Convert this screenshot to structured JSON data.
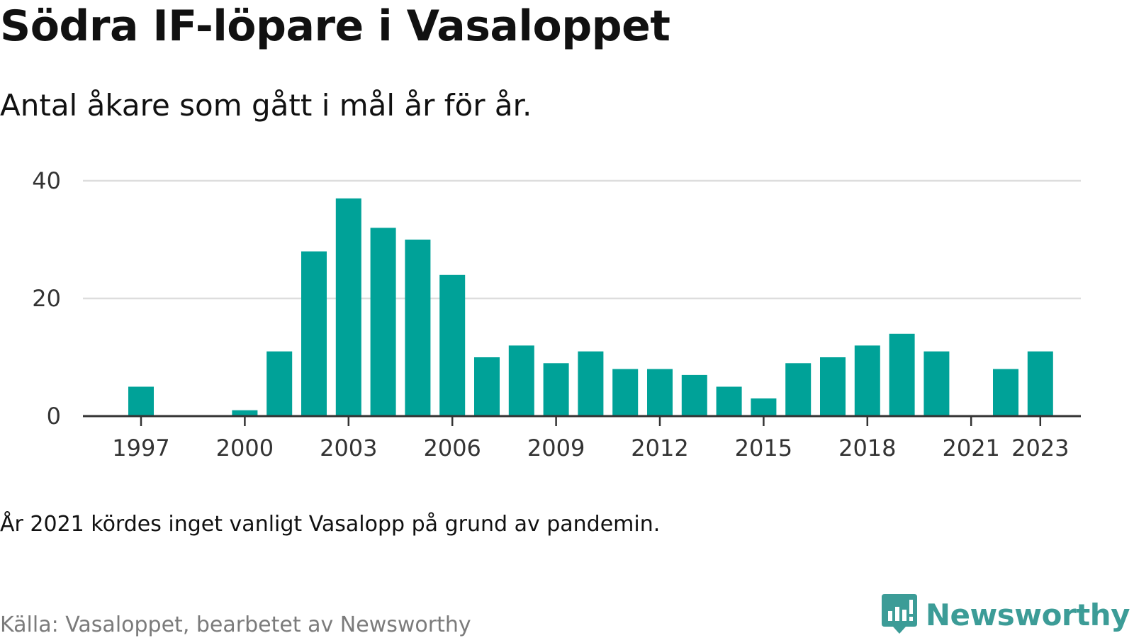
{
  "title": "Södra IF-löpare i Vasaloppet",
  "subtitle": "Antal åkare som gått i mål år för år.",
  "note": "År 2021 kördes inget vanligt Vasalopp på grund av pandemin.",
  "source": "Källa: Vasaloppet, bearbetet av Newsworthy",
  "logo": {
    "text": "Newsworthy",
    "icon": "chart-speech-bubble-icon",
    "color": "#3c9c97"
  },
  "chart_data": {
    "type": "bar",
    "title": "Södra IF-löpare i Vasaloppet",
    "subtitle": "Antal åkare som gått i mål år för år.",
    "xlabel": "",
    "ylabel": "",
    "categories": [
      1997,
      1998,
      1999,
      2000,
      2001,
      2002,
      2003,
      2004,
      2005,
      2006,
      2007,
      2008,
      2009,
      2010,
      2011,
      2012,
      2013,
      2014,
      2015,
      2016,
      2017,
      2018,
      2019,
      2020,
      2021,
      2022,
      2023
    ],
    "values": [
      5,
      0,
      0,
      1,
      11,
      28,
      37,
      32,
      30,
      24,
      10,
      12,
      9,
      11,
      8,
      8,
      7,
      5,
      3,
      9,
      10,
      12,
      14,
      11,
      0,
      8,
      11
    ],
    "x_tick_labels": [
      "1997",
      "2000",
      "2003",
      "2006",
      "2009",
      "2012",
      "2015",
      "2018",
      "2021",
      "2023"
    ],
    "y_ticks": [
      0,
      20,
      40
    ],
    "ylim": [
      0,
      40
    ],
    "grid": true,
    "legend": "none",
    "bar_color": "#00a298",
    "grid_color": "#dddddd",
    "axis_color": "#333333"
  }
}
